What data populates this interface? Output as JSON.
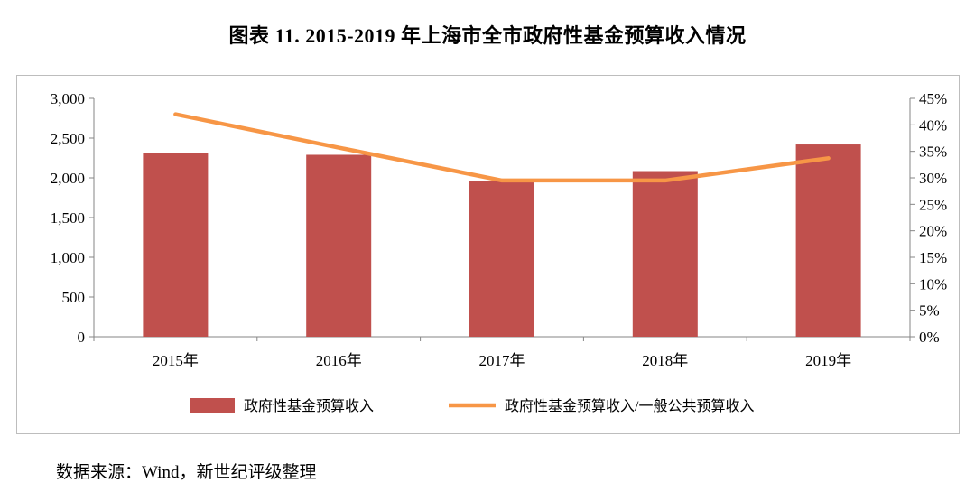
{
  "title": "图表 11. 2015-2019 年上海市全市政府性基金预算收入情况",
  "source": "数据来源：Wind，新世纪评级整理",
  "chart_data": {
    "type": "bar",
    "categories": [
      "2015年",
      "2016年",
      "2017年",
      "2018年",
      "2019年"
    ],
    "series": [
      {
        "name": "政府性基金预算收入",
        "type": "bar",
        "axis": "left",
        "color": "#c0504d",
        "values": [
          2310,
          2290,
          1955,
          2085,
          2420
        ]
      },
      {
        "name": "政府性基金预算收入/一般公共预算收入",
        "type": "line",
        "axis": "right",
        "color": "#f79646",
        "values": [
          0.42,
          0.357,
          0.295,
          0.295,
          0.337
        ]
      }
    ],
    "y_left": {
      "min": 0,
      "max": 3000,
      "ticks": [
        "0",
        "500",
        "1,000",
        "1,500",
        "2,000",
        "2,500",
        "3,000"
      ]
    },
    "y_right": {
      "min": 0,
      "max": 0.45,
      "ticks": [
        "0%",
        "5%",
        "10%",
        "15%",
        "20%",
        "25%",
        "30%",
        "35%",
        "40%",
        "45%"
      ]
    },
    "legend_position": "bottom",
    "grid": false
  }
}
